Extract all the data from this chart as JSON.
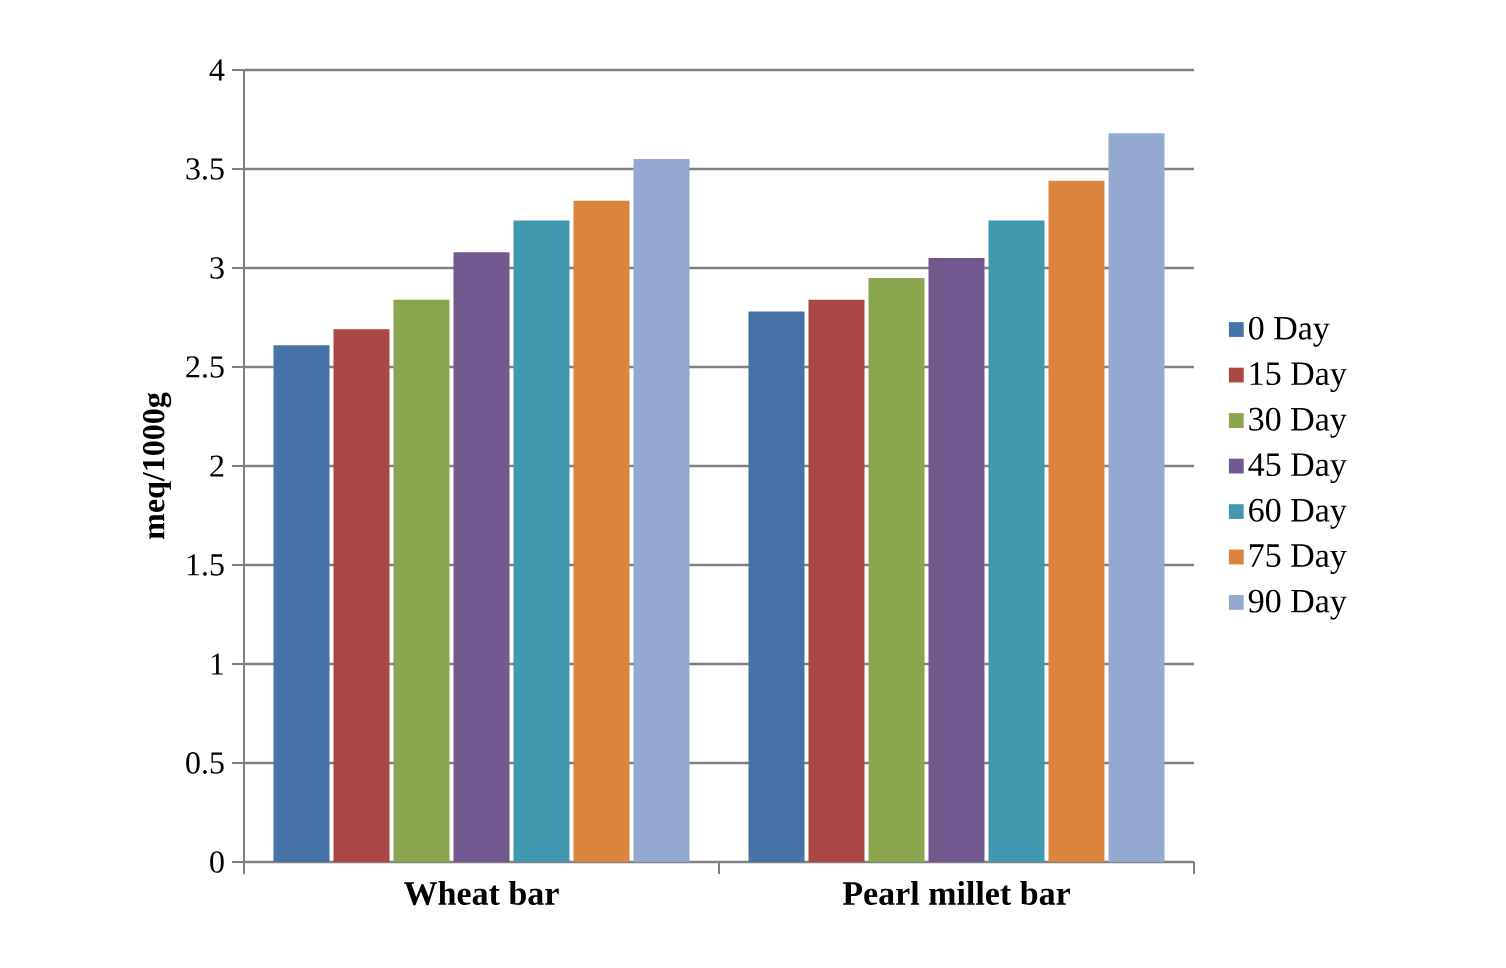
{
  "chart_data": {
    "type": "bar",
    "ylabel": "meq/1000g",
    "categories": [
      "Wheat bar",
      "Pearl millet bar"
    ],
    "series": [
      {
        "name": "0 Day",
        "color": "#4572a7",
        "values": [
          2.61,
          2.78
        ]
      },
      {
        "name": "15 Day",
        "color": "#aa4643",
        "values": [
          2.69,
          2.84
        ]
      },
      {
        "name": "30 Day",
        "color": "#89a54e",
        "values": [
          2.84,
          2.95
        ]
      },
      {
        "name": "45 Day",
        "color": "#71588f",
        "values": [
          3.08,
          3.05
        ]
      },
      {
        "name": "60 Day",
        "color": "#4198af",
        "values": [
          3.24,
          3.24
        ]
      },
      {
        "name": "75 Day",
        "color": "#db843d",
        "values": [
          3.34,
          3.44
        ]
      },
      {
        "name": "90 Day",
        "color": "#93a9cf",
        "values": [
          3.55,
          3.68
        ]
      }
    ],
    "ylim": [
      0,
      4
    ],
    "yticks": [
      0,
      0.5,
      1,
      1.5,
      2,
      2.5,
      3,
      3.5,
      4
    ],
    "grid": "y",
    "legend": "right"
  }
}
